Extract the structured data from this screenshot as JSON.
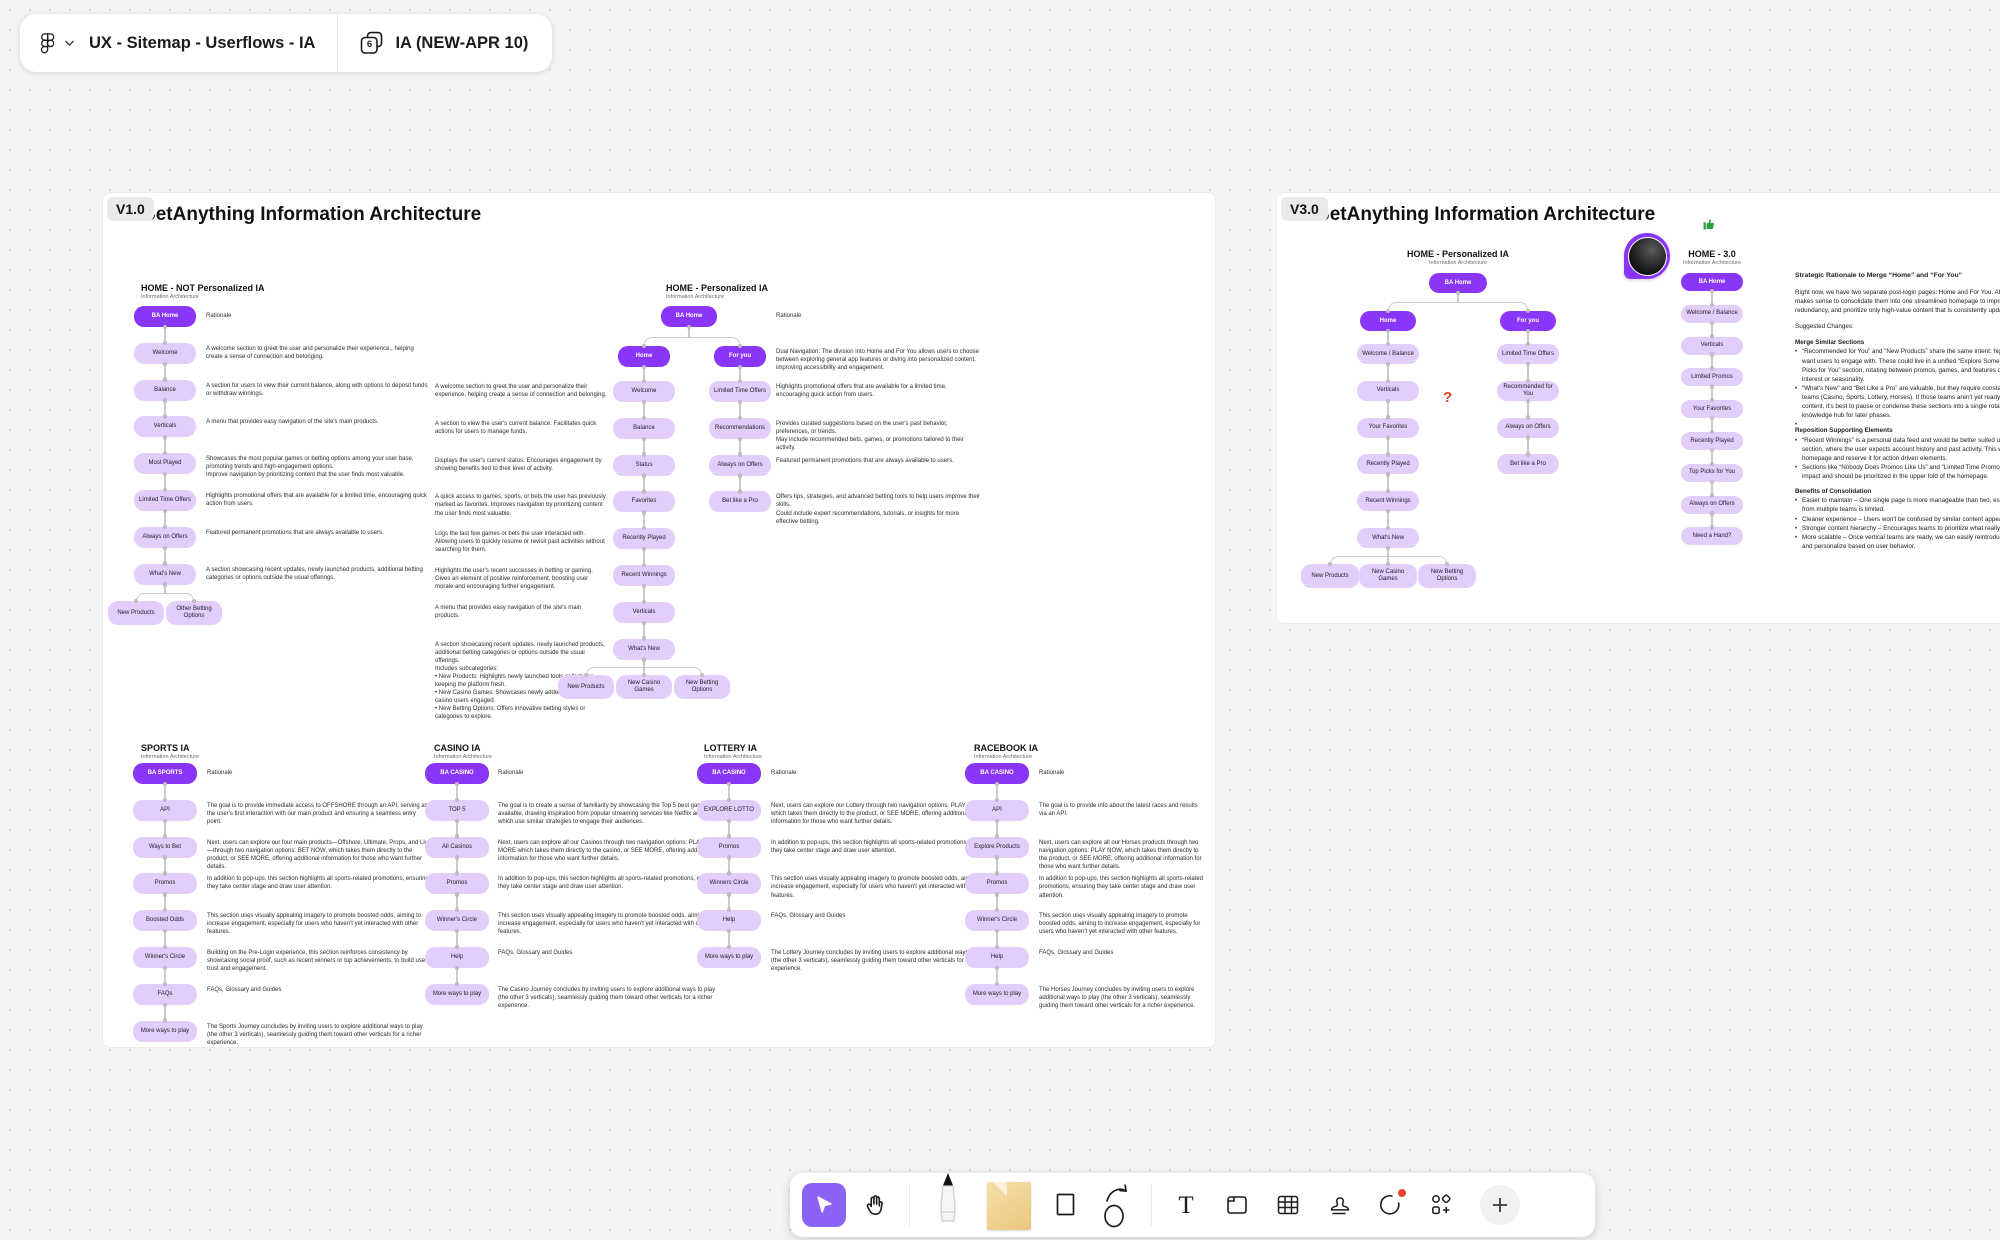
{
  "header": {
    "file_name": "UX - Sitemap - Userflows - IA",
    "page_number": "6",
    "page_name": "IA (NEW-APR 10)"
  },
  "colors": {
    "accent_purple": "#8A36F8",
    "node_light": "#E3CDFA",
    "toolbar_active": "#8A63F6",
    "question_mark": "#E0451D",
    "thumbs_up_green": "#2F9E44",
    "sticky_note": "#EFD18F",
    "canvas": "#F4F4F3"
  },
  "sections": [
    {
      "label": "V1.0",
      "title": "BetAnything Information Architecture"
    },
    {
      "label": "V3.0",
      "title": "BetAnything Information Architecture"
    }
  ],
  "annotations": {
    "question_mark": "?",
    "collaborator_avatar": "collaborator-avatar",
    "thumbs_up_stamp": "thumbs-up"
  },
  "diagrams": {
    "home_not_personalized": {
      "title": "HOME - NOT Personalized IA",
      "subtitle": "Information Architecture",
      "rationale_label": "Rationale",
      "nodes": [
        {
          "label": "BA Home",
          "dark": true
        },
        {
          "label": "Welcome",
          "rationale": "A welcome section to greet the user and personalize their experience., helping create a sense of connection and belonging."
        },
        {
          "label": "Balance",
          "rationale": "A section for users to view their current balance, along with options to deposit funds or withdraw winnings."
        },
        {
          "label": "Verticals",
          "rationale": "A menu that provides easy navigation of the site's main products."
        },
        {
          "label": "Most Played",
          "rationale": "Showcases the most popular games or betting options among your user base, promoting trends and high-engagement options.\nImprove navigation by prioritizing content that the user finds most valuable."
        },
        {
          "label": "Limited Time Offers",
          "rationale": "Highlights promotional offers that are available for a limited time, encouraging quick action from users."
        },
        {
          "label": "Always on Offers",
          "rationale": "Featured permanent promotions that are always available to users."
        },
        {
          "label": "What's New",
          "rationale": "A section showcasing recent updates, newly launched products, additional betting categories or options outside the usual offerings."
        }
      ],
      "children": [
        "New Products",
        "Other Betting Options"
      ]
    },
    "home_personalized": {
      "title": "HOME - Personalized IA",
      "subtitle": "Information Architecture",
      "rationale_label": "Rationale",
      "root": "BA Home",
      "branches": [
        {
          "label": "Home",
          "dark": true,
          "nodes": [
            {
              "label": "Welcome",
              "rationale": "A welcome section to greet the user and personalize their experience, helping create a sense of connection and belonging."
            },
            {
              "label": "Balance",
              "rationale": "A section to view the user's current balance. Facilitates quick actions for users to manage funds."
            },
            {
              "label": "Status",
              "rationale": "Displays the user's current status. Encourages engagement by showing benefits tied to their level of activity."
            },
            {
              "label": "Favorites",
              "rationale": "A quick access to games, sports, or bets the user has previously marked as favorites. Improves navigation by prioritizing content the user finds most valuable."
            },
            {
              "label": "Recently Played",
              "rationale": "Logs the last few games or bets the user interacted with. Allowing users to quickly resume or revisit past activities without searching for them."
            },
            {
              "label": "Recent Winnings",
              "rationale": "Highlights the user's recent successes in betting or gaming. Gives an element of positive reinforcement, boosting user morale and encouraging further engagement."
            },
            {
              "label": "Verticals",
              "rationale": "A menu that provides easy navigation of the site's main products."
            },
            {
              "label": "What's New",
              "rationale": "A section showcasing recent updates, newly launched products, additional betting categories or options outside the usual offerings.\nIncludes subcategories:\n• New Products: Highlights newly launched tools or features, keeping the platform fresh.\n• New Casino Games: Showcases newly added games to keep casino users engaged.\n• New Betting Options: Offers innovative betting styles or categories to explore."
            }
          ],
          "children": [
            "New Products",
            "New Casino Games",
            "New Betting Options"
          ]
        },
        {
          "label": "For you",
          "dark": true,
          "rationale": "Dual Navigation: The division into Home and For You allows users to choose between exploring general app features or diving into personalized content, improving accessibility and engagement.",
          "nodes": [
            {
              "label": "Limited Time Offers",
              "rationale": "Highlights promotional offers that are available for a limited time, encouraging quick action from users."
            },
            {
              "label": "Recommendations",
              "rationale": "Provides curated suggestions based on the user's past behavior, preferences, or trends.\nMay include recommended bets, games, or promotions tailored to their activity."
            },
            {
              "label": "Always on Offers",
              "rationale": "Featured permanent promotions that are always available to users."
            },
            {
              "label": "Bet like a Pro",
              "rationale": "Offers tips, strategies, and advanced betting tools to help users improve their skills.\nCould include expert recommendations, tutorials, or insights for more effective betting."
            }
          ]
        }
      ]
    },
    "sports": {
      "title": "SPORTS IA",
      "subtitle": "Information Architecture",
      "rationale_label": "Rationale",
      "nodes": [
        {
          "label": "BA SPORTS",
          "dark": true
        },
        {
          "label": "API",
          "rationale": "The goal is to provide immediate access to OFFSHORE through an API, serving as the user's first interaction with our main product and ensuring a seamless entry point."
        },
        {
          "label": "Ways to Bet",
          "rationale": "Next, users can explore our four main products—Offshore, Ultimate, Props, and Live—through two navigation options: BET NOW, which takes them directly to the product, or SEE MORE, offering additional information for those who want further details."
        },
        {
          "label": "Promos",
          "rationale": "In addition to pop-ups, this section highlights all sports-related promotions, ensuring they take center stage and draw user attention."
        },
        {
          "label": "Boosted Odds",
          "rationale": "This section uses visually appealing imagery to promote boosted odds, aiming to increase engagement, especially for users who haven't yet interacted with other features."
        },
        {
          "label": "Winner's Circle",
          "rationale": "Building on the Pre-Login experience, this section reinforces consistency by showcasing social proof, such as recent winners or top achievements, to build user trust and engagement."
        },
        {
          "label": "FAQs",
          "rationale": "FAQs, Glossary and Guides"
        },
        {
          "label": "More ways to play",
          "rationale": "The Sports Journey concludes by inviting users to explore additional ways to play (the other 3 verticals), seamlessly guiding them toward other verticals for a richer experience."
        }
      ]
    },
    "casino": {
      "title": "CASINO IA",
      "subtitle": "Information Architecture",
      "rationale_label": "Rationale",
      "nodes": [
        {
          "label": "BA CASINO",
          "dark": true
        },
        {
          "label": "TOP 5",
          "rationale": "The goal is to create a sense of familiarity by showcasing the Top 5 best games available, drawing inspiration from popular streaming services like Netflix and HBO, which use similar strategies to engage their audiences."
        },
        {
          "label": "All Casinos",
          "rationale": "Next, users can explore all our Casinos through two navigation options: PLAY MORE which takes them directly to the casino, or SEE MORE, offering additional information for those who want further details."
        },
        {
          "label": "Promos",
          "rationale": "In addition to pop-ups, this section highlights all sports-related promotions, ensuring they take center stage and draw user attention."
        },
        {
          "label": "Winner's Circle",
          "rationale": "This section uses visually appealing imagery to promote boosted odds, aiming to increase engagement, especially for users who haven't yet interacted with other features."
        },
        {
          "label": "Help",
          "rationale": "FAQs, Glossary and Guides"
        },
        {
          "label": "More ways to play",
          "rationale": "The Casino Journey concludes by inviting users to explore additional ways to play (the other 3 verticals), seamlessly guiding them toward other verticals for a richer experience."
        }
      ]
    },
    "lottery": {
      "title": "LOTTERY IA",
      "subtitle": "Information Architecture",
      "rationale_label": "Rationale",
      "nodes": [
        {
          "label": "BA CASINO",
          "dark": true
        },
        {
          "label": "EXPLORE LOTTO",
          "rationale": "Next, users can explore our Lottery through two navigation options: PLAY NOW, which takes them directly to the product, or SEE MORE, offering additional information for those who want further details."
        },
        {
          "label": "Promos",
          "rationale": "In addition to pop-ups, this section highlights all sports-related promotions, ensuring they take center stage and draw user attention."
        },
        {
          "label": "Winners Circle",
          "rationale": "This section uses visually appealing imagery to promote boosted odds, aiming to increase engagement, especially for users who haven't yet interacted with other features."
        },
        {
          "label": "Help",
          "rationale": "FAQs, Glossary and Guides"
        },
        {
          "label": "More ways to play",
          "rationale": "The Lottery Journey concludes by inviting users to explore additional ways to play (the other 3 verticals), seamlessly guiding them toward other verticals for a richer experience."
        }
      ]
    },
    "racebook": {
      "title": "RACEBOOK IA",
      "subtitle": "Information Architecture",
      "rationale_label": "Rationale",
      "nodes": [
        {
          "label": "BA CASINO",
          "dark": true
        },
        {
          "label": "API",
          "rationale": "The goal is to provide info about the latest races and results via an API."
        },
        {
          "label": "Explore Products",
          "rationale": "Next, users can explore all our Horses products through two navigation options: PLAY NOW, which takes them directly to the product, or SEE MORE, offering additional information for those who want further details."
        },
        {
          "label": "Promos",
          "rationale": "In addition to pop-ups, this section highlights all sports-related promotions, ensuring they take center stage and draw user attention."
        },
        {
          "label": "Winner's Circle",
          "rationale": "This section uses visually appealing imagery to promote boosted odds, aiming to increase engagement, especially for users who haven't yet interacted with other features."
        },
        {
          "label": "Help",
          "rationale": "FAQs, Glossary and Guides"
        },
        {
          "label": "More ways to play",
          "rationale": "The Horses Journey concludes by inviting users to explore additional ways to play (the other 3 verticals), seamlessly guiding them toward other verticals for a richer experience."
        }
      ]
    },
    "v3_home_personalized": {
      "title": "HOME - Personalized IA",
      "subtitle": "Information Architecture",
      "root": "BA Home",
      "branches": [
        {
          "label": "Home",
          "dark": true,
          "nodes": [
            "Welcome / Balance",
            "Verticals",
            "Your Favorites",
            "Recently Played",
            "Recent Winnings",
            "What's New"
          ],
          "children": [
            "New Products",
            "New Casino Games",
            "New Betting Options"
          ]
        },
        {
          "label": "For you",
          "dark": true,
          "nodes": [
            "Limited Time Offers",
            "Recommended for You",
            "Always on Offers",
            "Bet like a Pro"
          ]
        }
      ]
    },
    "v3_home_30": {
      "title": "HOME - 3.0",
      "subtitle": "Information Architecture",
      "nodes": [
        {
          "label": "BA Home",
          "dark": true
        },
        {
          "label": "Welcome / Balance"
        },
        {
          "label": "Verticals"
        },
        {
          "label": "Limited Promos"
        },
        {
          "label": "Your Favorites"
        },
        {
          "label": "Recently Played"
        },
        {
          "label": "Top Picks for You"
        },
        {
          "label": "Always on Offers"
        },
        {
          "label": "Need a Hand?"
        }
      ]
    }
  },
  "notes": {
    "strategic": {
      "heading": "Strategic Rationale to Merge “Home” and “For You”",
      "intro": "Right now, we have two separate post-login pages: Home and For You. After reviewing both, it makes sense to consolidate them into one streamlined homepage to improve focus, reduce redundancy, and prioritize only high-value content that is consistently updated and relevant.",
      "suggested_label": "Suggested Changes:",
      "groups": [
        {
          "title": "Merge Similar Sections",
          "bullets": [
            "“Recommended for You” and “New Products” share the same intent: highlighting content we want users to engage with. These could live in a unified “Explore Something New” or “Top Picks for You” section, rotating between promos, games, and features depending on user interest or seasonality.",
            "“What's New” and “Bet Like a Pro” are valuable, but they require constant updates from vertical teams (Casino, Sports, Lottery, Horses). If those teams aren't yet ready to maintain fresh content, it's best to pause or condense these sections into a single rotating banner or knowledge hub for later phases.",
            ""
          ]
        },
        {
          "title": "Reposition Supporting Elements",
          "bullets": [
            "“Recent Winnings” is a personal data feed and would be better suited under the “My Account” section, where the user expects account history and past activity. This will declutter the homepage and reserve it for action driven elements.",
            "Sections like “Nobody Does Promos Like Us” and “Limited Time Promos” have high conversion impact and should be prioritized in the upper fold of the homepage."
          ]
        },
        {
          "title": "Benefits of Consolidation",
          "bullets": [
            "Easier to maintain – One single page is more manageable than two, especially when content from multiple teams is limited.",
            "Cleaner experience – Users won't be confused by similar content appearing twice.",
            "Stronger content hierarchy – Encourages teams to prioritize what really matters at page level.",
            "More scalable – Once vertical teams are ready, we can easily reintroduce dynamic modules and personalize based on user behavior."
          ]
        }
      ]
    }
  },
  "toolbar": {
    "tools": [
      {
        "name": "select",
        "active": true
      },
      {
        "name": "hand"
      },
      {
        "name": "marker"
      },
      {
        "name": "sticky-note"
      },
      {
        "name": "shape"
      },
      {
        "name": "connector"
      },
      {
        "name": "text"
      },
      {
        "name": "section"
      },
      {
        "name": "table"
      },
      {
        "name": "stamp"
      },
      {
        "name": "emote"
      },
      {
        "name": "widgets"
      },
      {
        "name": "add"
      }
    ]
  }
}
